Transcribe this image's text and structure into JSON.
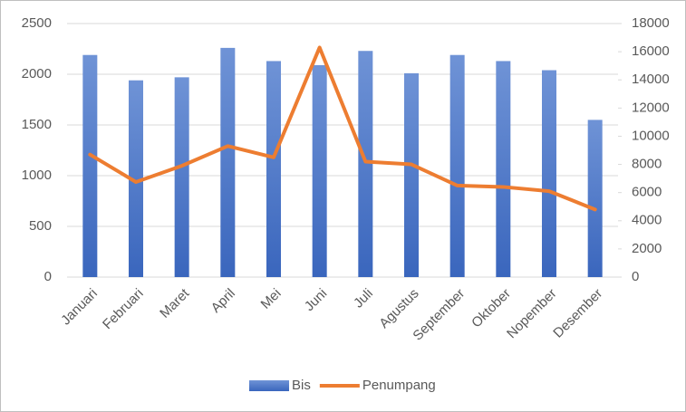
{
  "chart_data": {
    "type": "bar_line",
    "categories": [
      "Januari",
      "Februari",
      "Maret",
      "April",
      "Mei",
      "Juni",
      "Juli",
      "Agustus",
      "September",
      "Oktober",
      "Nopember",
      "Desember"
    ],
    "series": [
      {
        "name": "Bis",
        "type": "bar",
        "color": "#4472c4",
        "axis": "y",
        "values": [
          2190,
          1940,
          1970,
          2260,
          2130,
          2090,
          2230,
          2010,
          2190,
          2130,
          2040,
          1550
        ]
      },
      {
        "name": "Penumpang",
        "type": "line",
        "color": "#ed7d31",
        "axis": "y2",
        "values": [
          8700,
          6750,
          7900,
          9300,
          8500,
          16300,
          8200,
          8000,
          6500,
          6400,
          6100,
          4800
        ]
      }
    ],
    "ylim": [
      0,
      2500
    ],
    "yticks": [
      0,
      500,
      1000,
      1500,
      2000,
      2500
    ],
    "y2lim": [
      0,
      18000
    ],
    "y2ticks": [
      0,
      2000,
      4000,
      6000,
      8000,
      10000,
      12000,
      14000,
      16000,
      18000
    ],
    "grid": true,
    "legend": "bottom"
  }
}
